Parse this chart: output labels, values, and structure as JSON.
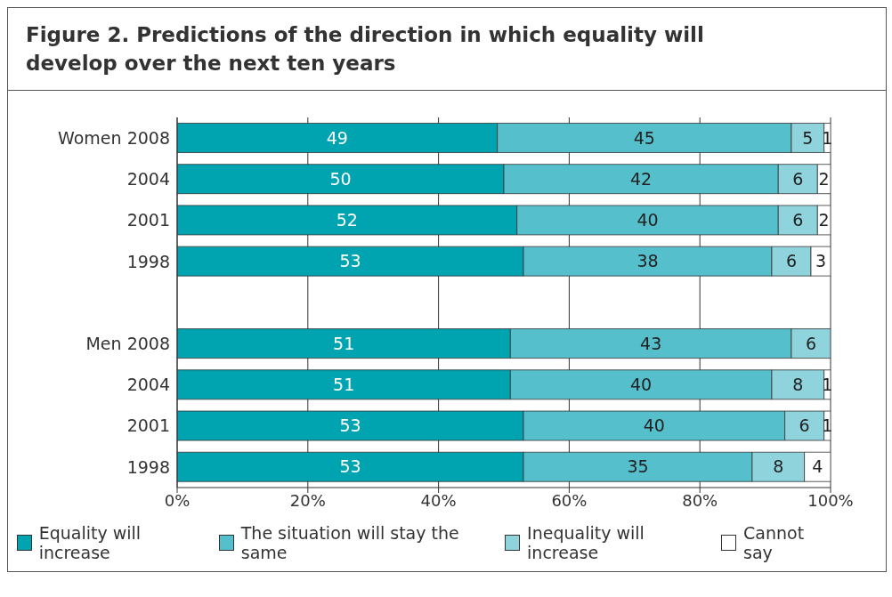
{
  "chart_data": {
    "type": "bar",
    "orientation": "horizontal",
    "stacked": true,
    "title": "Figure 2.  Predictions of the direction in which equality will develop over the next ten years",
    "categories": [
      "Women 2008",
      "2004",
      "2001",
      "1998",
      null,
      "Men 2008",
      "2004",
      "2001",
      "1998"
    ],
    "series": [
      {
        "name": "Equality will increase",
        "color": "#00a3b0",
        "values": [
          49,
          50,
          52,
          53,
          null,
          51,
          51,
          53,
          53
        ]
      },
      {
        "name": "The situation will stay the same",
        "color": "#55bfcb",
        "values": [
          45,
          42,
          40,
          38,
          null,
          43,
          40,
          40,
          35
        ]
      },
      {
        "name": "Inequality will increase",
        "color": "#8fd3dc",
        "values": [
          5,
          6,
          6,
          6,
          null,
          6,
          8,
          6,
          8
        ]
      },
      {
        "name": "Cannot say",
        "color": "#ffffff",
        "values": [
          1,
          2,
          2,
          3,
          null,
          null,
          1,
          1,
          4
        ]
      }
    ],
    "xlim": [
      0,
      100
    ],
    "xticks": [
      {
        "value": 0,
        "label": "0%"
      },
      {
        "value": 20,
        "label": "20%"
      },
      {
        "value": 40,
        "label": "40%"
      },
      {
        "value": 60,
        "label": "60%"
      },
      {
        "value": 80,
        "label": "80%"
      },
      {
        "value": 100,
        "label": "100%"
      }
    ],
    "grid": "x",
    "data_labels": true,
    "legend": "bottom"
  }
}
